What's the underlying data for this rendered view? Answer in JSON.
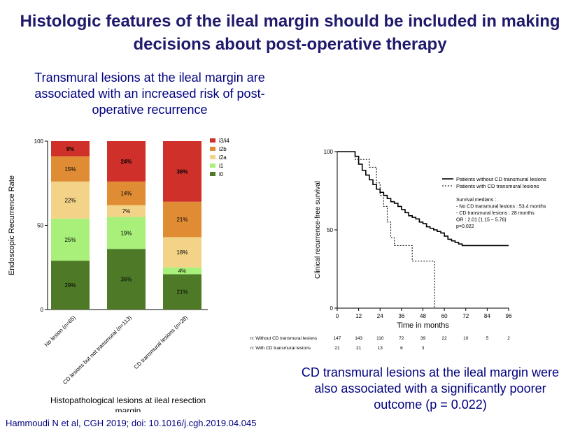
{
  "slide": {
    "title_line1": "Histologic features of the ileal margin should be included in making",
    "title_line2": "decisions about post-operative therapy",
    "left_subtitle_line1": "Transmural lesions at the ileal margin are",
    "left_subtitle_line2": "associated with an increased risk of post-",
    "left_subtitle_line3": "operative recurrence",
    "right_subtitle_line1": "CD transmural lesions at the ileal margin were",
    "right_subtitle_line2": "also associated with a significantly poorer",
    "right_subtitle_line3": "outcome (p = 0.022)",
    "citation": "Hammoudi N et al, CGH 2019; doi: 10.1016/j.cgh.2019.04.045"
  },
  "chart_data": [
    {
      "type": "bar",
      "stacked": true,
      "ylabel": "Endoscopic Recurrence Rate",
      "xlabel_line1": "Histopathological lesions at ileal resection",
      "xlabel_line2": "margin",
      "ylim": [
        0,
        100
      ],
      "yticks": [
        "0",
        "50",
        "100"
      ],
      "categories": [
        "No lesion (n=65)",
        "CD lesions but not transmural (n=113)",
        "CD transmural lesions (n=28)"
      ],
      "legend_position": "top-right",
      "series": [
        {
          "name": "i0",
          "color": "#4e7a27",
          "values": [
            29,
            36,
            21
          ],
          "labels": [
            "29%",
            "36%",
            "21%"
          ]
        },
        {
          "name": "i1",
          "color": "#a8f07a",
          "values": [
            25,
            19,
            4
          ],
          "labels": [
            "25%",
            "19%",
            "4%"
          ]
        },
        {
          "name": "i2a",
          "color": "#f2d387",
          "values": [
            22,
            7,
            18
          ],
          "labels": [
            "22%",
            "7%",
            "18%"
          ]
        },
        {
          "name": "i2b",
          "color": "#e08c35",
          "values": [
            15,
            14,
            21
          ],
          "labels": [
            "15%",
            "14%",
            "21%"
          ]
        },
        {
          "name": "i3/i4",
          "color": "#d0302a",
          "values": [
            9,
            24,
            36
          ],
          "labels": [
            "9%",
            "24%",
            "36%"
          ]
        }
      ]
    },
    {
      "type": "line",
      "step": true,
      "ylabel": "Clinical recurrence-free survival",
      "xlabel": "Time in months",
      "xlim": [
        0,
        96
      ],
      "ylim": [
        0,
        100
      ],
      "xticks": [
        "0",
        "12",
        "24",
        "36",
        "48",
        "60",
        "72",
        "84",
        "96"
      ],
      "yticks": [
        "0",
        "50",
        "100"
      ],
      "legend_position": "top-right",
      "series": [
        {
          "name": "Patients without CD transmural lesions",
          "style": "solid",
          "x": [
            0,
            10,
            12,
            14,
            16,
            18,
            20,
            22,
            24,
            26,
            28,
            30,
            32,
            34,
            36,
            38,
            40,
            42,
            44,
            46,
            48,
            50,
            52,
            54,
            56,
            58,
            60,
            62,
            64,
            66,
            68,
            70,
            96
          ],
          "y": [
            100,
            97,
            92,
            88,
            85,
            82,
            79,
            76,
            74,
            72,
            70,
            68,
            67,
            65,
            63,
            61,
            59,
            58,
            57,
            55,
            54,
            52,
            51,
            50,
            49,
            48,
            46,
            44,
            43,
            42,
            41,
            40,
            40
          ]
        },
        {
          "name": "Patients with CD transmural lesions",
          "style": "dotted",
          "x": [
            0,
            10,
            18,
            22,
            24,
            26,
            28,
            30,
            32,
            42,
            54,
            54.5
          ],
          "y": [
            100,
            95,
            90,
            80,
            72,
            65,
            55,
            45,
            40,
            30,
            30,
            0
          ]
        }
      ],
      "annotation_lines": [
        "Survival medians :",
        "- No CD transmural lesions : 53.4 months",
        "- CD transmural lesions : 28 months",
        "OR : 2.01 (1.15 – 5.76)",
        "p=0.022"
      ],
      "risk_table": {
        "rows": [
          {
            "label": "n: Without CD transmural lesions",
            "values": [
              "147",
              "143",
              "110",
              "72",
              "39",
              "22",
              "10",
              "5",
              "2"
            ]
          },
          {
            "label": "n: With CD transmural lesions",
            "values": [
              "21",
              "21",
              "13",
              "6",
              "3"
            ]
          }
        ]
      }
    }
  ]
}
